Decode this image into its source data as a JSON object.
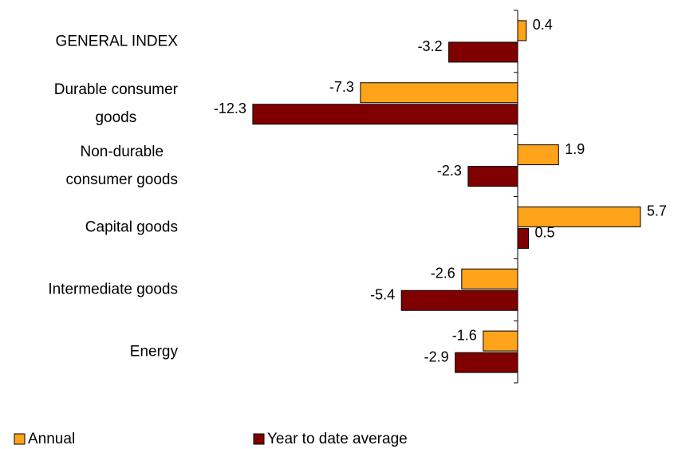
{
  "chart_data": {
    "type": "hbar",
    "categories": [
      "GENERAL INDEX",
      "Durable consumer\ngoods",
      "Non-durable\nconsumer goods",
      "Capital goods",
      "Intermediate goods",
      "Energy"
    ],
    "series": [
      {
        "name": "Annual",
        "color": "#ffa31a",
        "values": [
          0.4,
          -7.3,
          1.9,
          5.7,
          -2.6,
          -1.6
        ]
      },
      {
        "name": "Year to date average",
        "color": "#800000",
        "values": [
          -3.2,
          -12.3,
          -2.3,
          0.5,
          -5.4,
          -2.9
        ]
      }
    ],
    "xlim": [
      -12.5,
      7
    ],
    "legend": "bottom"
  }
}
